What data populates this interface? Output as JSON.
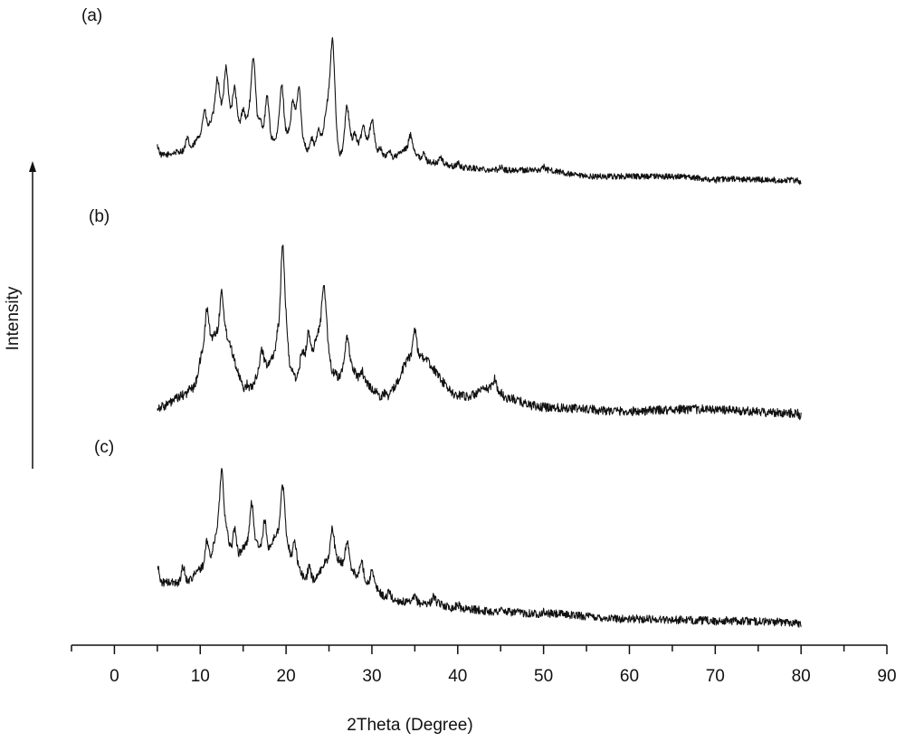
{
  "chart_data": {
    "type": "line",
    "title": "",
    "xlabel": "2Theta (Degree)",
    "ylabel": "Intensity",
    "xlim": [
      -5,
      90
    ],
    "x_ticks": [
      0,
      10,
      20,
      30,
      40,
      50,
      60,
      70,
      80,
      90
    ],
    "grid": false,
    "legend": "none",
    "x_range": [
      5,
      80
    ],
    "panel_labels": [
      "(a)",
      "(b)",
      "(c)"
    ],
    "series": [
      {
        "panel": "(a)",
        "peaks": [
          [
            5,
            0.16
          ],
          [
            8.5,
            0.2
          ],
          [
            10.5,
            0.35
          ],
          [
            12,
            0.52
          ],
          [
            13,
            0.58
          ],
          [
            14,
            0.47
          ],
          [
            15,
            0.36
          ],
          [
            16.2,
            0.63
          ],
          [
            17,
            0.3
          ],
          [
            17.8,
            0.42
          ],
          [
            18.5,
            0.2
          ],
          [
            19.5,
            0.48
          ],
          [
            20.2,
            0.24
          ],
          [
            20.8,
            0.4
          ],
          [
            21.5,
            0.47
          ],
          [
            22,
            0.2
          ],
          [
            23,
            0.2
          ],
          [
            23.8,
            0.25
          ],
          [
            25.4,
            0.72
          ],
          [
            26.3,
            0.12
          ],
          [
            27.1,
            0.37
          ],
          [
            28,
            0.23
          ],
          [
            29,
            0.27
          ],
          [
            30,
            0.3
          ],
          [
            31,
            0.15
          ],
          [
            32,
            0.14
          ],
          [
            34.5,
            0.22
          ],
          [
            36,
            0.12
          ],
          [
            38,
            0.1
          ],
          [
            40,
            0.07
          ],
          [
            45,
            0.05
          ],
          [
            50,
            0.05
          ],
          [
            55,
            0.0
          ],
          [
            60,
            0.0
          ],
          [
            65,
            0.0
          ],
          [
            70,
            -0.02
          ],
          [
            80,
            -0.03
          ]
        ]
      },
      {
        "panel": "(b)",
        "peaks": [
          [
            5,
            0.0
          ],
          [
            8.9,
            0.07
          ],
          [
            10.8,
            0.34
          ],
          [
            12.5,
            0.4
          ],
          [
            15.5,
            0.08
          ],
          [
            17.2,
            0.2
          ],
          [
            19.1,
            0.28
          ],
          [
            19.6,
            0.55
          ],
          [
            20.8,
            0.12
          ],
          [
            21.9,
            0.2
          ],
          [
            22.6,
            0.26
          ],
          [
            24.4,
            0.43
          ],
          [
            25.7,
            0.12
          ],
          [
            27.1,
            0.24
          ],
          [
            28.8,
            0.13
          ],
          [
            31.5,
            0.05
          ],
          [
            35,
            0.27
          ],
          [
            40.5,
            0.05
          ],
          [
            44.3,
            0.1
          ],
          [
            45,
            0.05
          ],
          [
            50,
            0.0
          ],
          [
            60,
            -0.02
          ],
          [
            67,
            -0.01
          ],
          [
            80,
            -0.03
          ]
        ]
      },
      {
        "panel": "(c)",
        "peaks": [
          [
            5,
            0.2
          ],
          [
            8,
            0.2
          ],
          [
            10.8,
            0.3
          ],
          [
            12.5,
            0.58
          ],
          [
            14,
            0.35
          ],
          [
            16,
            0.45
          ],
          [
            17.5,
            0.38
          ],
          [
            19.6,
            0.52
          ],
          [
            21,
            0.3
          ],
          [
            22.7,
            0.2
          ],
          [
            25.4,
            0.35
          ],
          [
            27.1,
            0.3
          ],
          [
            28.8,
            0.22
          ],
          [
            30,
            0.18
          ],
          [
            32,
            0.1
          ],
          [
            35,
            0.08
          ],
          [
            37.2,
            0.08
          ],
          [
            40,
            0.05
          ],
          [
            45,
            0.03
          ],
          [
            50,
            0.02
          ],
          [
            60,
            -0.01
          ],
          [
            70,
            -0.02
          ],
          [
            80,
            -0.03
          ]
        ]
      }
    ]
  }
}
